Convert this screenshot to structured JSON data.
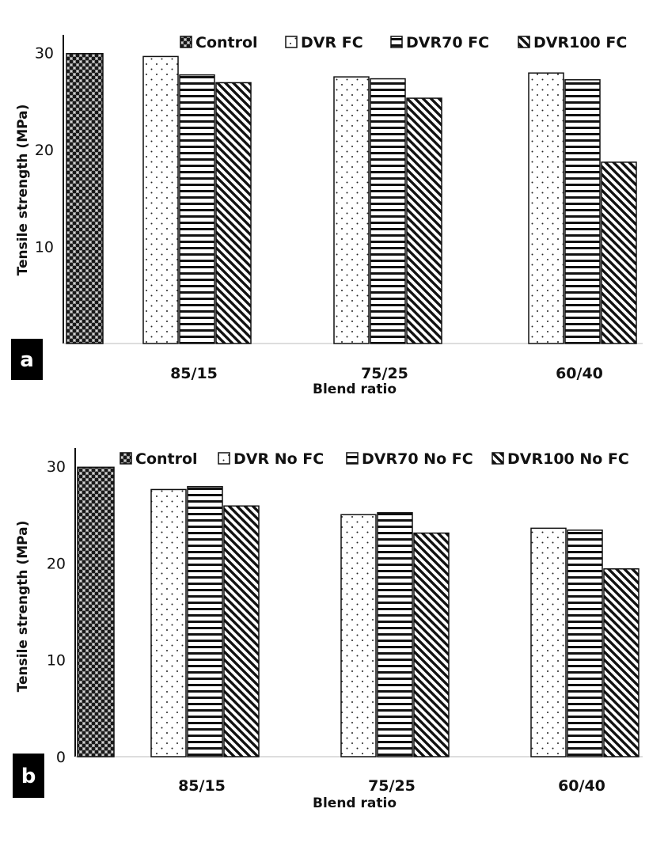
{
  "chart_data": [
    {
      "type": "bar",
      "panel_label": "a",
      "categories": [
        "85/15",
        "75/25",
        "60/40"
      ],
      "series": [
        {
          "name": "Control",
          "values": [
            29.9,
            null,
            null
          ],
          "pattern": "checker"
        },
        {
          "name": "DVR FC",
          "values": [
            29.6,
            27.5,
            27.9
          ],
          "pattern": "dots"
        },
        {
          "name": "DVR70 FC",
          "values": [
            27.7,
            27.3,
            27.2
          ],
          "pattern": "hlines"
        },
        {
          "name": "DVR100 FC",
          "values": [
            26.9,
            25.3,
            18.7
          ],
          "pattern": "diag"
        }
      ],
      "xlabel": "Blend ratio",
      "ylabel": "Tensile strength (MPa)",
      "yticks": [
        "10",
        "20",
        "30"
      ],
      "ylim": [
        0,
        30
      ],
      "grid": false,
      "legend": "top"
    },
    {
      "type": "bar",
      "panel_label": "b",
      "categories": [
        "85/15",
        "75/25",
        "60/40"
      ],
      "series": [
        {
          "name": "Control",
          "values": [
            29.9,
            null,
            null
          ],
          "pattern": "checker"
        },
        {
          "name": "DVR No FC",
          "values": [
            27.6,
            25.0,
            23.6
          ],
          "pattern": "dots"
        },
        {
          "name": "DVR70 No FC",
          "values": [
            27.9,
            25.2,
            23.4
          ],
          "pattern": "hlines"
        },
        {
          "name": "DVR100 No FC",
          "values": [
            25.9,
            23.1,
            19.4
          ],
          "pattern": "diag"
        }
      ],
      "xlabel": "Blend ratio",
      "ylabel": "Tensile strength (MPa)",
      "yticks": [
        "0",
        "10",
        "20",
        "30"
      ],
      "ylim": [
        0,
        30
      ],
      "grid": false,
      "legend": "top"
    }
  ]
}
